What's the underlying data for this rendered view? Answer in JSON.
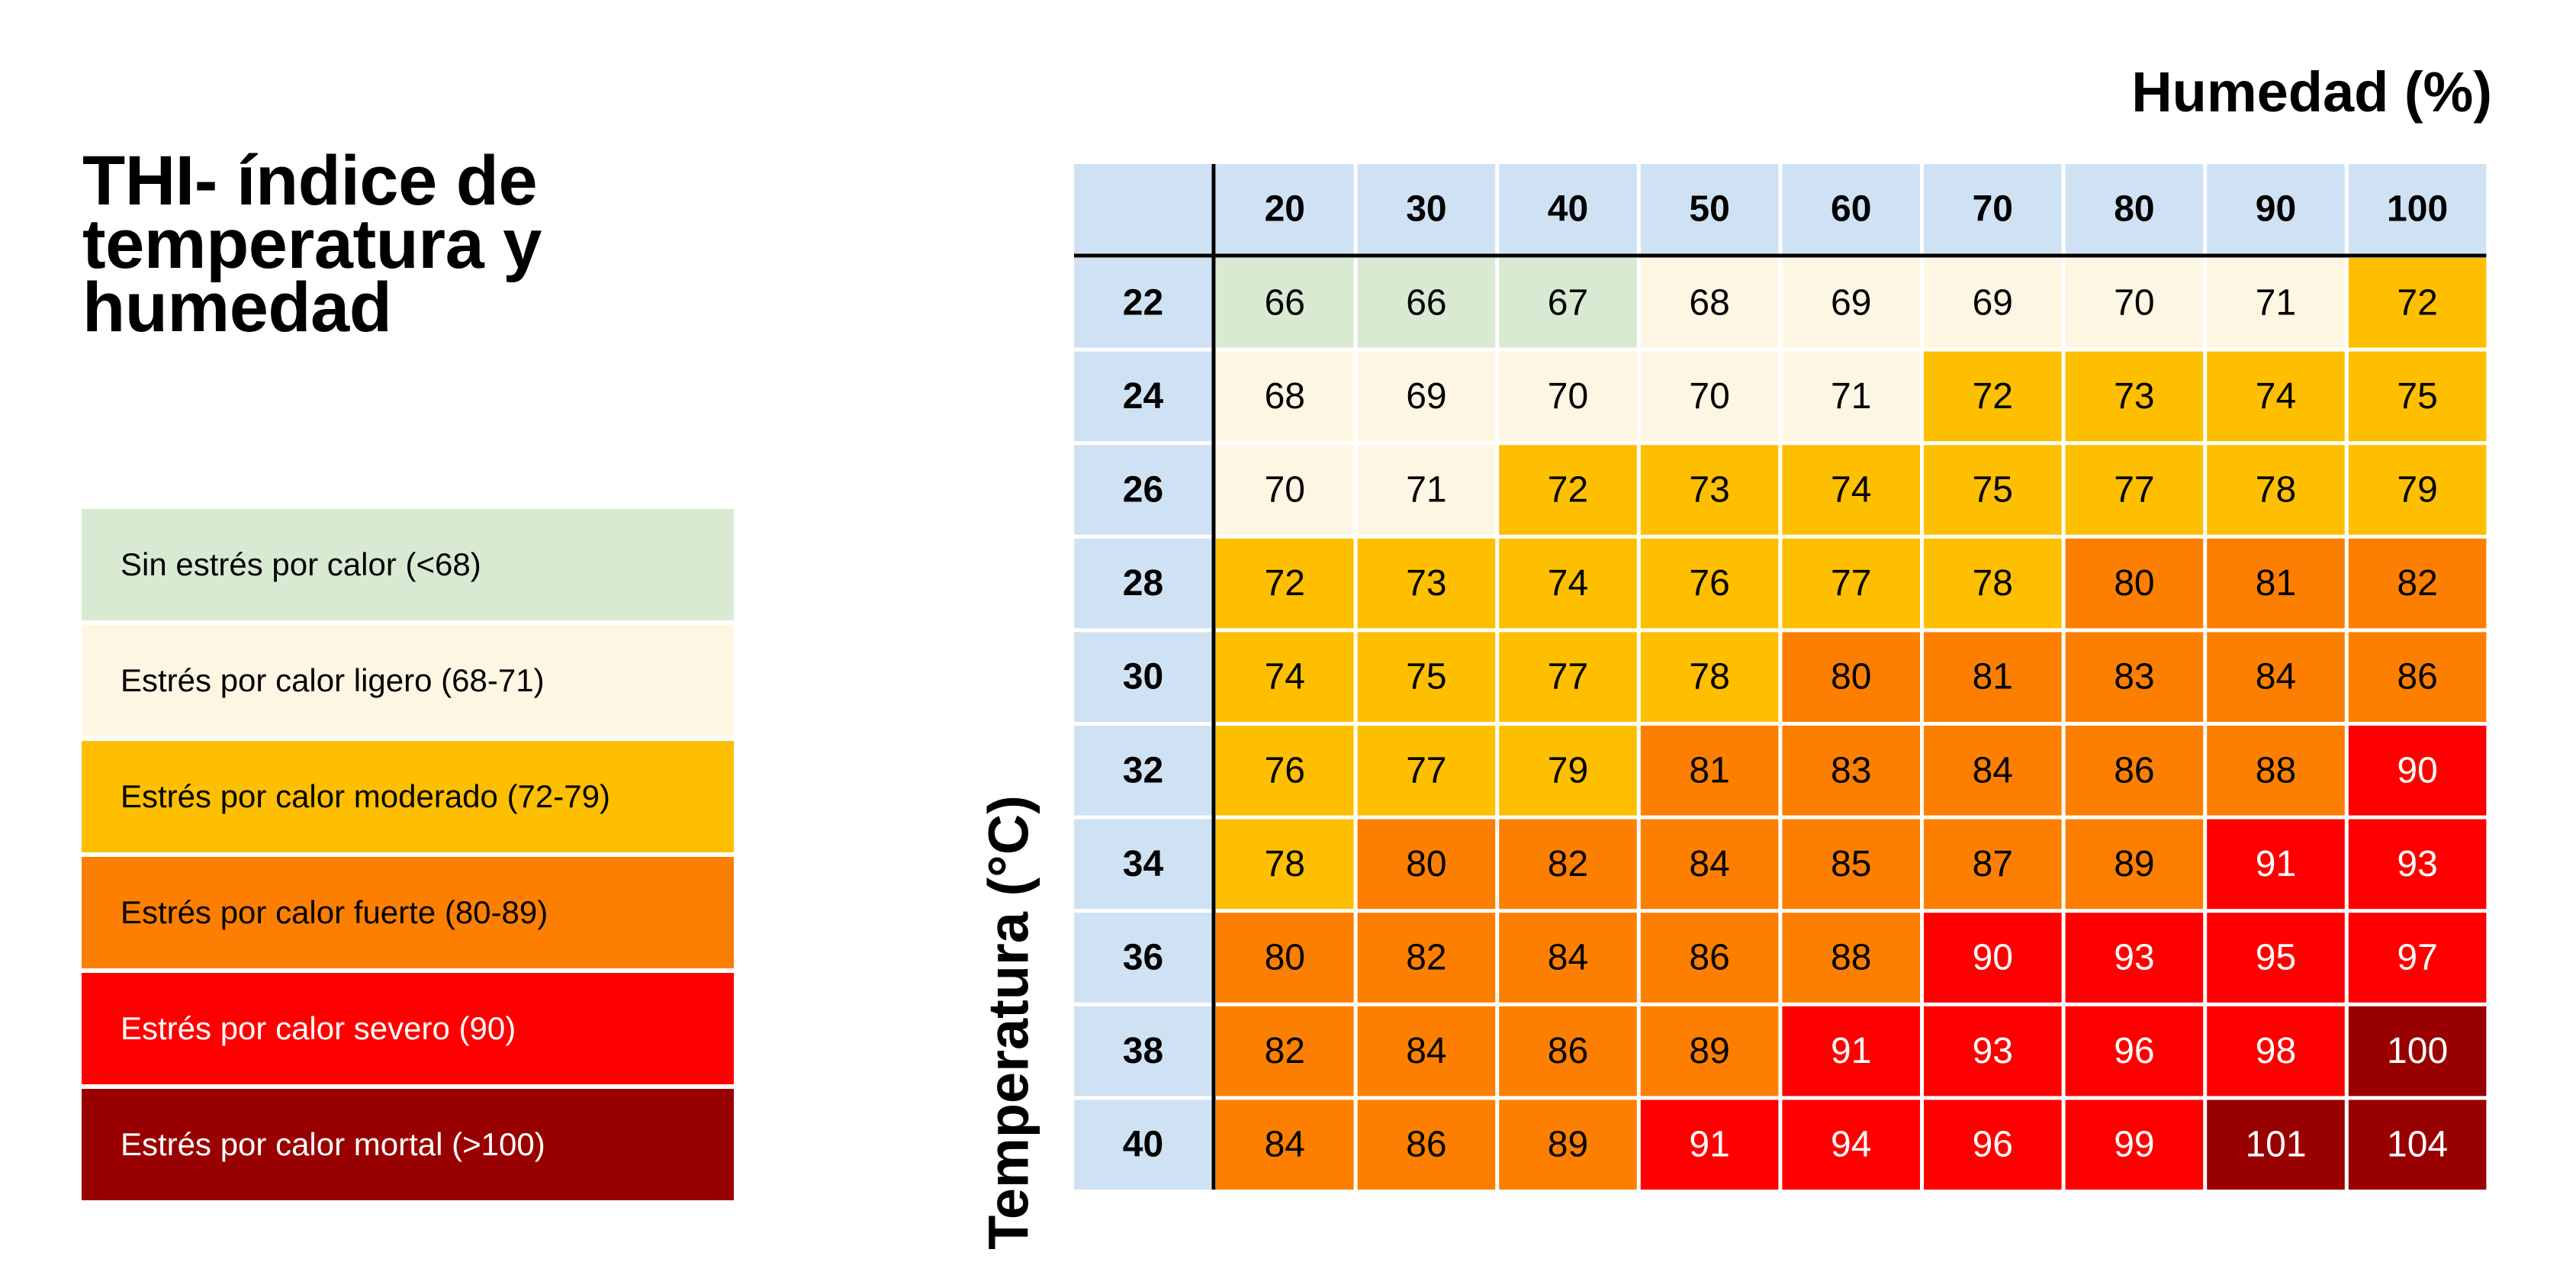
{
  "title": "THI- índice de temperatura y humedad",
  "legend": [
    {
      "label": "Sin estrés por calor (<68)",
      "color": "#d9ead3",
      "text_color": "#000000"
    },
    {
      "label": "Estrés por calor ligero (68-71)",
      "color": "#fdf6e3",
      "text_color": "#000000"
    },
    {
      "label": "Estrés por calor moderado (72-79)",
      "color": "#fdbf00",
      "text_color": "#000000"
    },
    {
      "label": "Estrés por calor fuerte (80-89)",
      "color": "#fc7f01",
      "text_color": "#000000"
    },
    {
      "label": "Estrés por calor severo (90)",
      "color": "#fe0000",
      "text_color": "#ffffff"
    },
    {
      "label": "Estrés por calor mortal (>100)",
      "color": "#990000",
      "text_color": "#ffffff"
    }
  ],
  "chart_data": {
    "type": "heatmap",
    "xlabel": "Humedad (%)",
    "ylabel": "Temperatura (°C)",
    "x": [
      20,
      30,
      40,
      50,
      60,
      70,
      80,
      90,
      100
    ],
    "y": [
      22,
      24,
      26,
      28,
      30,
      32,
      34,
      36,
      38,
      40
    ],
    "values": [
      [
        66,
        66,
        67,
        68,
        69,
        69,
        70,
        71,
        72
      ],
      [
        68,
        69,
        70,
        70,
        71,
        72,
        73,
        74,
        75
      ],
      [
        70,
        71,
        72,
        73,
        74,
        75,
        77,
        78,
        79
      ],
      [
        72,
        73,
        74,
        76,
        77,
        78,
        80,
        81,
        82
      ],
      [
        74,
        75,
        77,
        78,
        80,
        81,
        83,
        84,
        86
      ],
      [
        76,
        77,
        79,
        81,
        83,
        84,
        86,
        88,
        90
      ],
      [
        78,
        80,
        82,
        84,
        85,
        87,
        89,
        91,
        93
      ],
      [
        80,
        82,
        84,
        86,
        88,
        90,
        93,
        95,
        97
      ],
      [
        82,
        84,
        86,
        89,
        91,
        93,
        96,
        98,
        100
      ],
      [
        84,
        86,
        89,
        91,
        94,
        96,
        99,
        101,
        104
      ]
    ],
    "header_color": "#cfe2f3"
  }
}
